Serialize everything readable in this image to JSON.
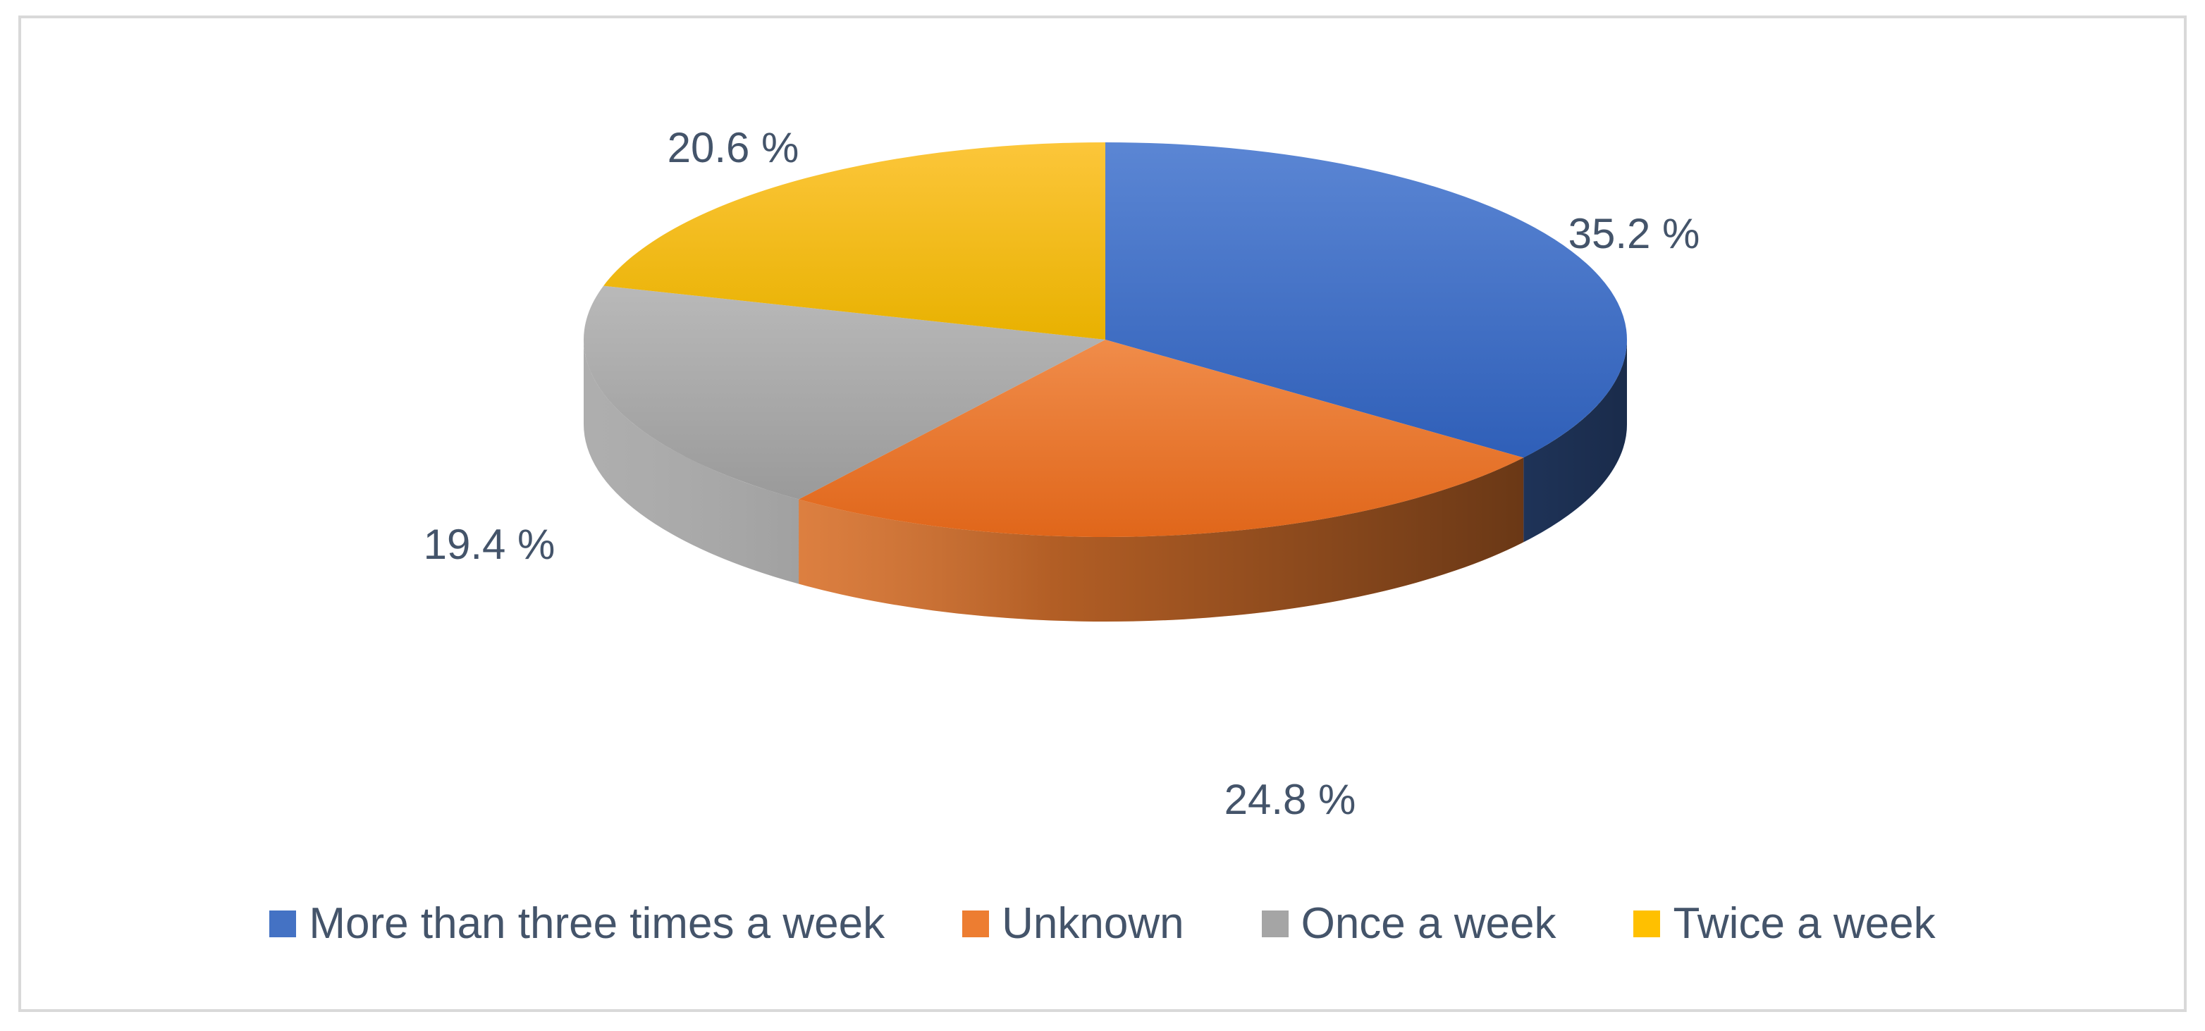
{
  "chart_data": {
    "type": "pie",
    "categories": [
      "More than three times a week",
      "Unknown",
      "Once a week",
      "Twice a week"
    ],
    "values": [
      35.2,
      24.8,
      19.4,
      20.6
    ],
    "data_labels": [
      "35.2 %",
      "24.8 %",
      "19.4 %",
      "20.6 %"
    ],
    "colors": [
      "#4472c4",
      "#ed7d31",
      "#a5a5a5",
      "#ffc000"
    ],
    "style": "3d",
    "legend": {
      "position": "bottom",
      "items": [
        {
          "label": "More than three times a week",
          "color": "#4472c4"
        },
        {
          "label": "Unknown",
          "color": "#ed7d31"
        },
        {
          "label": "Once a week",
          "color": "#a5a5a5"
        },
        {
          "label": "Twice a week",
          "color": "#ffc000"
        }
      ]
    }
  }
}
